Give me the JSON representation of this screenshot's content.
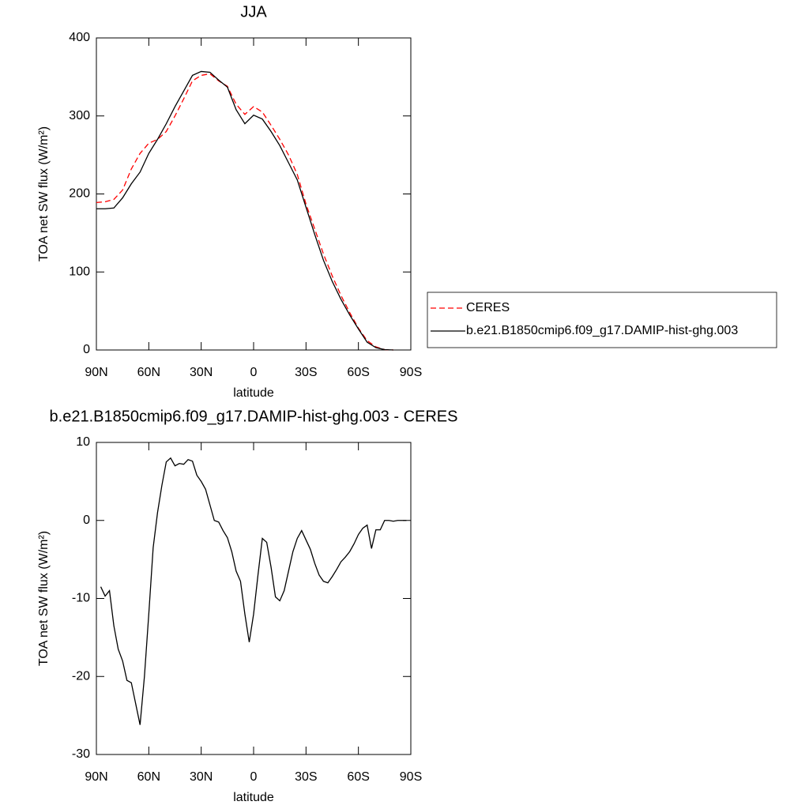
{
  "chart_data": [
    {
      "type": "line",
      "title": "JJA",
      "xlabel": "latitude",
      "ylabel": "TOA net SW flux (W/m²)",
      "x": [
        90,
        85,
        80,
        75,
        70,
        65,
        60,
        55,
        50,
        45,
        40,
        35,
        30,
        25,
        20,
        15,
        10,
        5,
        0,
        -5,
        -10,
        -15,
        -20,
        -25,
        -30,
        -35,
        -40,
        -45,
        -50,
        -55,
        -60,
        -65,
        -70,
        -75,
        -80
      ],
      "series": [
        {
          "name": "CERES",
          "color": "#ff0000",
          "dash": true,
          "values": [
            189,
            190,
            193,
            205,
            232,
            252,
            265,
            270,
            280,
            300,
            322,
            345,
            352,
            354,
            345,
            338,
            315,
            302,
            312,
            305,
            288,
            270,
            250,
            225,
            187,
            155,
            123,
            95,
            70,
            48,
            28,
            12,
            4,
            0.5,
            0
          ]
        },
        {
          "name": "b.e21.B1850cmip6.f09_g17.DAMIP-hist-ghg.003",
          "color": "#000000",
          "dash": false,
          "values": [
            181,
            181,
            182,
            195,
            213,
            228,
            252,
            270,
            290,
            312,
            332,
            352,
            357,
            356,
            346,
            337,
            308,
            290,
            301,
            296,
            280,
            262,
            240,
            218,
            183,
            148,
            115,
            88,
            65,
            45,
            27,
            10,
            3,
            0.5,
            0
          ]
        }
      ],
      "xlim": [
        90,
        -90
      ],
      "xticks": [
        {
          "value": 90,
          "label": "90N"
        },
        {
          "value": 60,
          "label": "60N"
        },
        {
          "value": 30,
          "label": "30N"
        },
        0,
        {
          "value": -30,
          "label": "30S"
        },
        {
          "value": -60,
          "label": "60S"
        },
        {
          "value": -90,
          "label": "90S"
        }
      ],
      "ylim": [
        0,
        400
      ],
      "yticks": [
        0,
        100,
        200,
        300,
        400
      ],
      "legend": "right"
    },
    {
      "type": "line",
      "title": "b.e21.B1850cmip6.f09_g17.DAMIP-hist-ghg.003 - CERES",
      "xlabel": "latitude",
      "ylabel": "TOA net SW flux (W/m²)",
      "x": [
        87.5,
        85,
        82.5,
        80,
        77.5,
        75,
        72.5,
        70,
        67.5,
        65,
        62.5,
        60,
        57.5,
        55,
        52.5,
        50,
        47.5,
        45,
        42.5,
        40,
        37.5,
        35,
        32.5,
        30,
        27.5,
        25,
        22.5,
        20,
        17.5,
        15,
        12.5,
        10,
        7.5,
        5,
        2.5,
        0,
        -2.5,
        -5,
        -7.5,
        -10,
        -12.5,
        -15,
        -17.5,
        -20,
        -22.5,
        -25,
        -27.5,
        -30,
        -32.5,
        -35,
        -37.5,
        -40,
        -42.5,
        -45,
        -47.5,
        -50,
        -52.5,
        -55,
        -57.5,
        -60,
        -62.5,
        -65,
        -67.5,
        -70,
        -72.5,
        -75,
        -77.5,
        -80,
        -82.5,
        -85,
        -87.5
      ],
      "series": [
        {
          "color": "#000000",
          "dash": false,
          "values": [
            -8.5,
            -9.7,
            -9,
            -13.5,
            -16.5,
            -18,
            -20.5,
            -20.8,
            -23.5,
            -26.2,
            -20,
            -12,
            -3.5,
            1,
            4.5,
            7.5,
            8,
            7,
            7.3,
            7.2,
            7.8,
            7.6,
            5.8,
            5,
            4,
            2,
            0,
            -0.2,
            -1.3,
            -2.2,
            -4,
            -6.5,
            -7.8,
            -12,
            -15.6,
            -12,
            -7,
            -2.3,
            -2.8,
            -6,
            -9.8,
            -10.3,
            -9,
            -6.5,
            -4,
            -2.3,
            -1.3,
            -2.5,
            -3.7,
            -5.5,
            -7,
            -7.8,
            -8,
            -7.2,
            -6.3,
            -5.3,
            -4.7,
            -4,
            -3,
            -1.8,
            -1,
            -0.6,
            -3.6,
            -1.2,
            -1.2,
            0,
            0,
            -0.1,
            0,
            0,
            0
          ]
        }
      ],
      "xlim": [
        90,
        -90
      ],
      "xticks": [
        {
          "value": 90,
          "label": "90N"
        },
        {
          "value": 60,
          "label": "60N"
        },
        {
          "value": 30,
          "label": "30N"
        },
        0,
        {
          "value": -30,
          "label": "30S"
        },
        {
          "value": -60,
          "label": "60S"
        },
        {
          "value": -90,
          "label": "90S"
        }
      ],
      "ylim": [
        -30,
        10
      ],
      "yticks": [
        -30,
        -20,
        -10,
        0,
        10
      ]
    }
  ]
}
